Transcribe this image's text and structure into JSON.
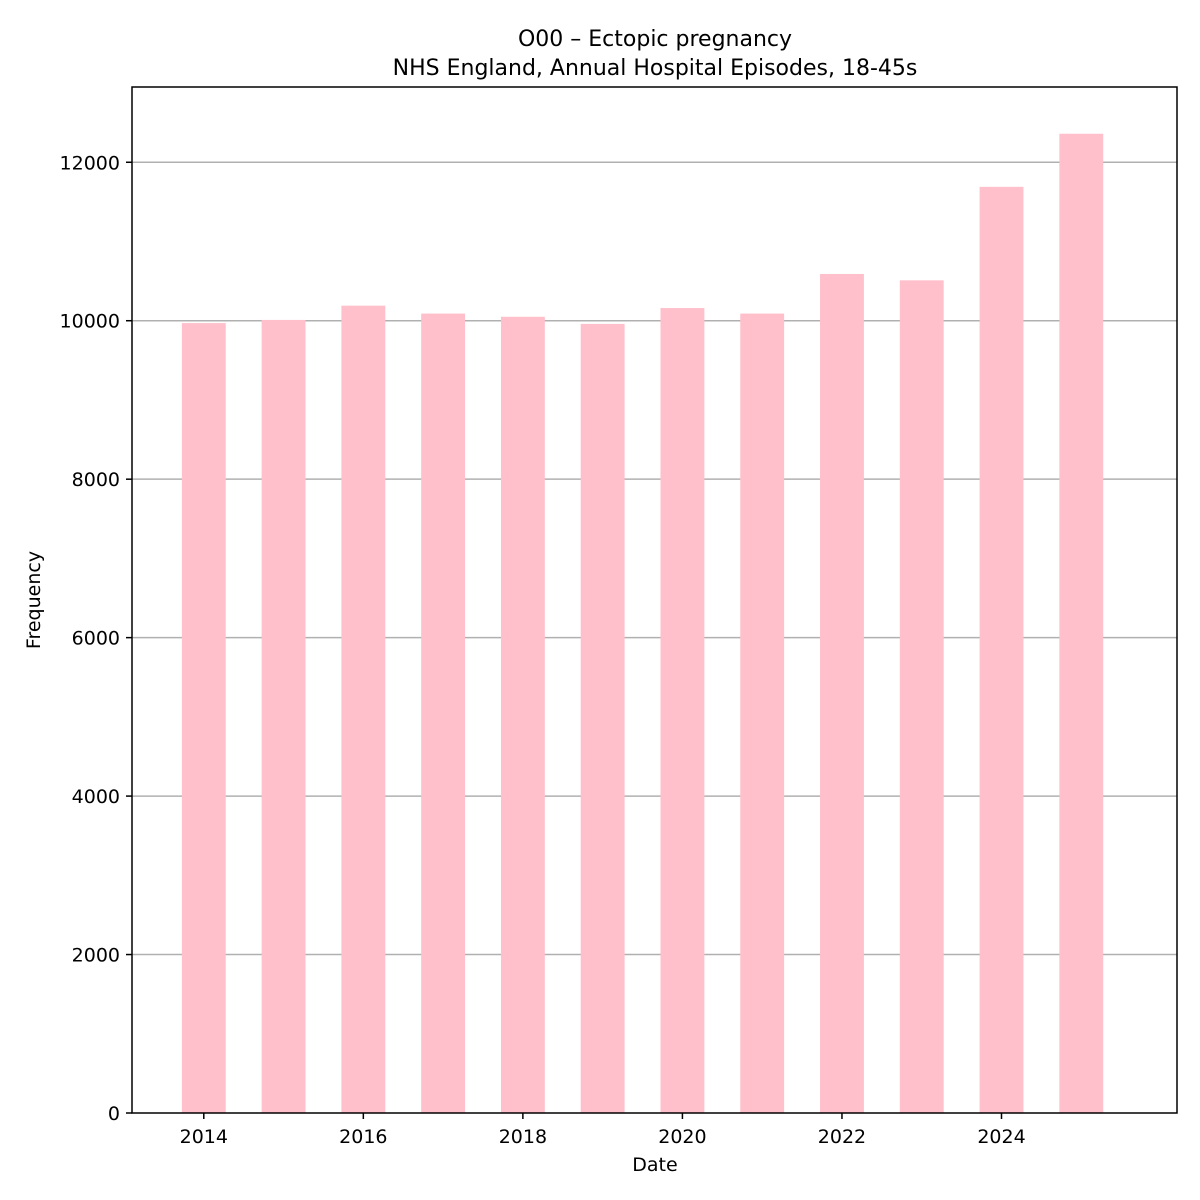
{
  "chart_data": {
    "type": "bar",
    "title": "O00 – Ectopic pregnancy",
    "subtitle": "NHS England, Annual Hospital Episodes, 18-45s",
    "xlabel": "Date",
    "ylabel": "Frequency",
    "x": [
      2014,
      2015,
      2016,
      2017,
      2018,
      2019,
      2020,
      2021,
      2022,
      2023,
      2024,
      2025
    ],
    "values": [
      9970,
      10010,
      10190,
      10090,
      10050,
      9960,
      10160,
      10090,
      10590,
      10510,
      11690,
      12360
    ],
    "xlim": [
      2013.1,
      2026.2
    ],
    "ylim": [
      0,
      12950
    ],
    "xticks": [
      2014,
      2016,
      2018,
      2020,
      2022,
      2024
    ],
    "xtick_labels": [
      "2014",
      "2016",
      "2018",
      "2020",
      "2022",
      "2024"
    ],
    "yticks": [
      0,
      2000,
      4000,
      6000,
      8000,
      10000,
      12000
    ],
    "ytick_labels": [
      "0",
      "2000",
      "4000",
      "6000",
      "8000",
      "10000",
      "12000"
    ],
    "grid": "y-axis only",
    "bar_width_years": 0.55,
    "colors": {
      "bar": "#ffc0cb",
      "grid": "#b0b0b0",
      "axis": "#000000"
    }
  }
}
